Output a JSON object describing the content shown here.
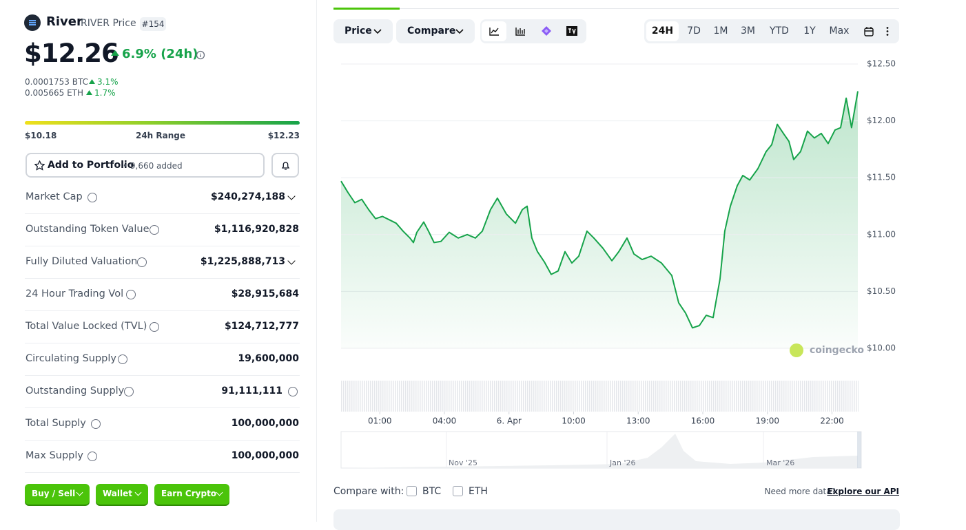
{
  "header": {
    "name": "River",
    "symbol": "RIVER Price",
    "rank": "#154",
    "price": "$12.26",
    "change": "6.9% (24h)",
    "btc_price": "0.0001753 BTC",
    "btc_change": "3.1%",
    "eth_price": "0.005665 ETH",
    "eth_change": "1.7%"
  },
  "range": {
    "low": "$10.18",
    "label": "24h Range",
    "high": "$12.23"
  },
  "portfolio": {
    "button": "Add to Portfolio",
    "added": "• 9,660 added"
  },
  "stats": [
    {
      "label": "Market Cap",
      "value": "$240,274,188"
    },
    {
      "label": "Outstanding Token Value",
      "value": "$1,116,920,828"
    },
    {
      "label": "Fully Diluted Valuation",
      "value": "$1,225,888,713"
    },
    {
      "label": "24 Hour Trading Vol",
      "value": "$28,915,684"
    },
    {
      "label": "Total Value Locked (TVL)",
      "value": "$124,712,777"
    },
    {
      "label": "Circulating Supply",
      "value": "19,600,000"
    },
    {
      "label": "Outstanding Supply",
      "value": "91,111,111"
    },
    {
      "label": "Total Supply",
      "value": "100,000,000"
    },
    {
      "label": "Max Supply",
      "value": "100,000,000"
    }
  ],
  "actions": [
    "Buy / Sell",
    "Wallet",
    "Earn Crypto"
  ],
  "toolbar": {
    "price": "Price",
    "compare": "Compare",
    "ranges": [
      "24H",
      "7D",
      "1M",
      "3M",
      "YTD",
      "1Y",
      "Max"
    ]
  },
  "chart": {
    "type": "line",
    "color": "#16a34a",
    "watermark": "coingecko",
    "x": [
      -0.8,
      -0.48,
      -0.16,
      0.16,
      0.48,
      0.8,
      1.12,
      1.44,
      1.76,
      2.08,
      2.4,
      2.56,
      2.72,
      3.04,
      3.26,
      3.52,
      3.84,
      4.22,
      4.64,
      5.06,
      5.44,
      5.76,
      6.14,
      6.46,
      6.88,
      7.3,
      7.62,
      7.84,
      8.06,
      8.32,
      8.64,
      8.96,
      9.28,
      9.6,
      9.92,
      10.24,
      10.62,
      10.94,
      11.36,
      11.78,
      12.1,
      12.48,
      12.8,
      13.18,
      13.6,
      14.08,
      14.56,
      14.88,
      15.2,
      15.52,
      15.84,
      16.16,
      16.48,
      16.8,
      17.02,
      17.28,
      17.6,
      17.86,
      18.18,
      18.56,
      18.94,
      19.2,
      19.46,
      19.78,
      20.0,
      20.22,
      20.54,
      20.86,
      21.18,
      21.5,
      21.82,
      22.14,
      22.4,
      22.66,
      22.91,
      23.2
    ],
    "values": [
      11.47,
      11.37,
      11.28,
      11.31,
      11.22,
      11.14,
      11.16,
      11.13,
      11.1,
      11.03,
      10.97,
      10.93,
      11.02,
      11.11,
      11.03,
      10.93,
      10.94,
      11.02,
      10.97,
      11.0,
      10.97,
      11.03,
      11.22,
      11.32,
      11.18,
      11.1,
      11.22,
      11.25,
      10.97,
      10.85,
      10.76,
      10.65,
      10.68,
      10.85,
      10.75,
      10.81,
      11.03,
      10.97,
      10.88,
      10.77,
      10.85,
      10.97,
      10.83,
      10.78,
      10.81,
      10.75,
      10.64,
      10.4,
      10.31,
      10.18,
      10.2,
      10.29,
      10.27,
      10.61,
      11.03,
      11.25,
      11.43,
      11.52,
      11.48,
      11.58,
      11.73,
      11.79,
      11.97,
      11.88,
      11.82,
      11.66,
      11.73,
      11.91,
      11.85,
      11.89,
      11.8,
      11.92,
      11.94,
      12.2,
      11.94,
      12.26
    ],
    "xlim": [
      -0.8,
      23.2
    ],
    "xticks": [
      {
        "value": 1,
        "label": "01:00"
      },
      {
        "value": 4,
        "label": "04:00"
      },
      {
        "value": 7,
        "label": "6. Apr"
      },
      {
        "value": 10,
        "label": "10:00"
      },
      {
        "value": 13,
        "label": "13:00"
      },
      {
        "value": 16,
        "label": "16:00"
      },
      {
        "value": 19,
        "label": "19:00"
      },
      {
        "value": 22,
        "label": "22:00"
      }
    ],
    "ylim": [
      10.0,
      12.5
    ],
    "yticks": [
      {
        "value": 10.0,
        "label": "$10.00"
      },
      {
        "value": 10.5,
        "label": "$10.50"
      },
      {
        "value": 11.0,
        "label": "$11.00"
      },
      {
        "value": 11.5,
        "label": "$11.50"
      },
      {
        "value": 12.0,
        "label": "$12.00"
      },
      {
        "value": 12.5,
        "label": "$12.50"
      }
    ],
    "grid": true,
    "navigator_labels": [
      "Nov '25",
      "Jan '26",
      "Mar '26"
    ]
  },
  "compare_bar": {
    "label": "Compare with:",
    "options": [
      "BTC",
      "ETH"
    ],
    "more": "Need more data?",
    "api": "Explore our API"
  }
}
